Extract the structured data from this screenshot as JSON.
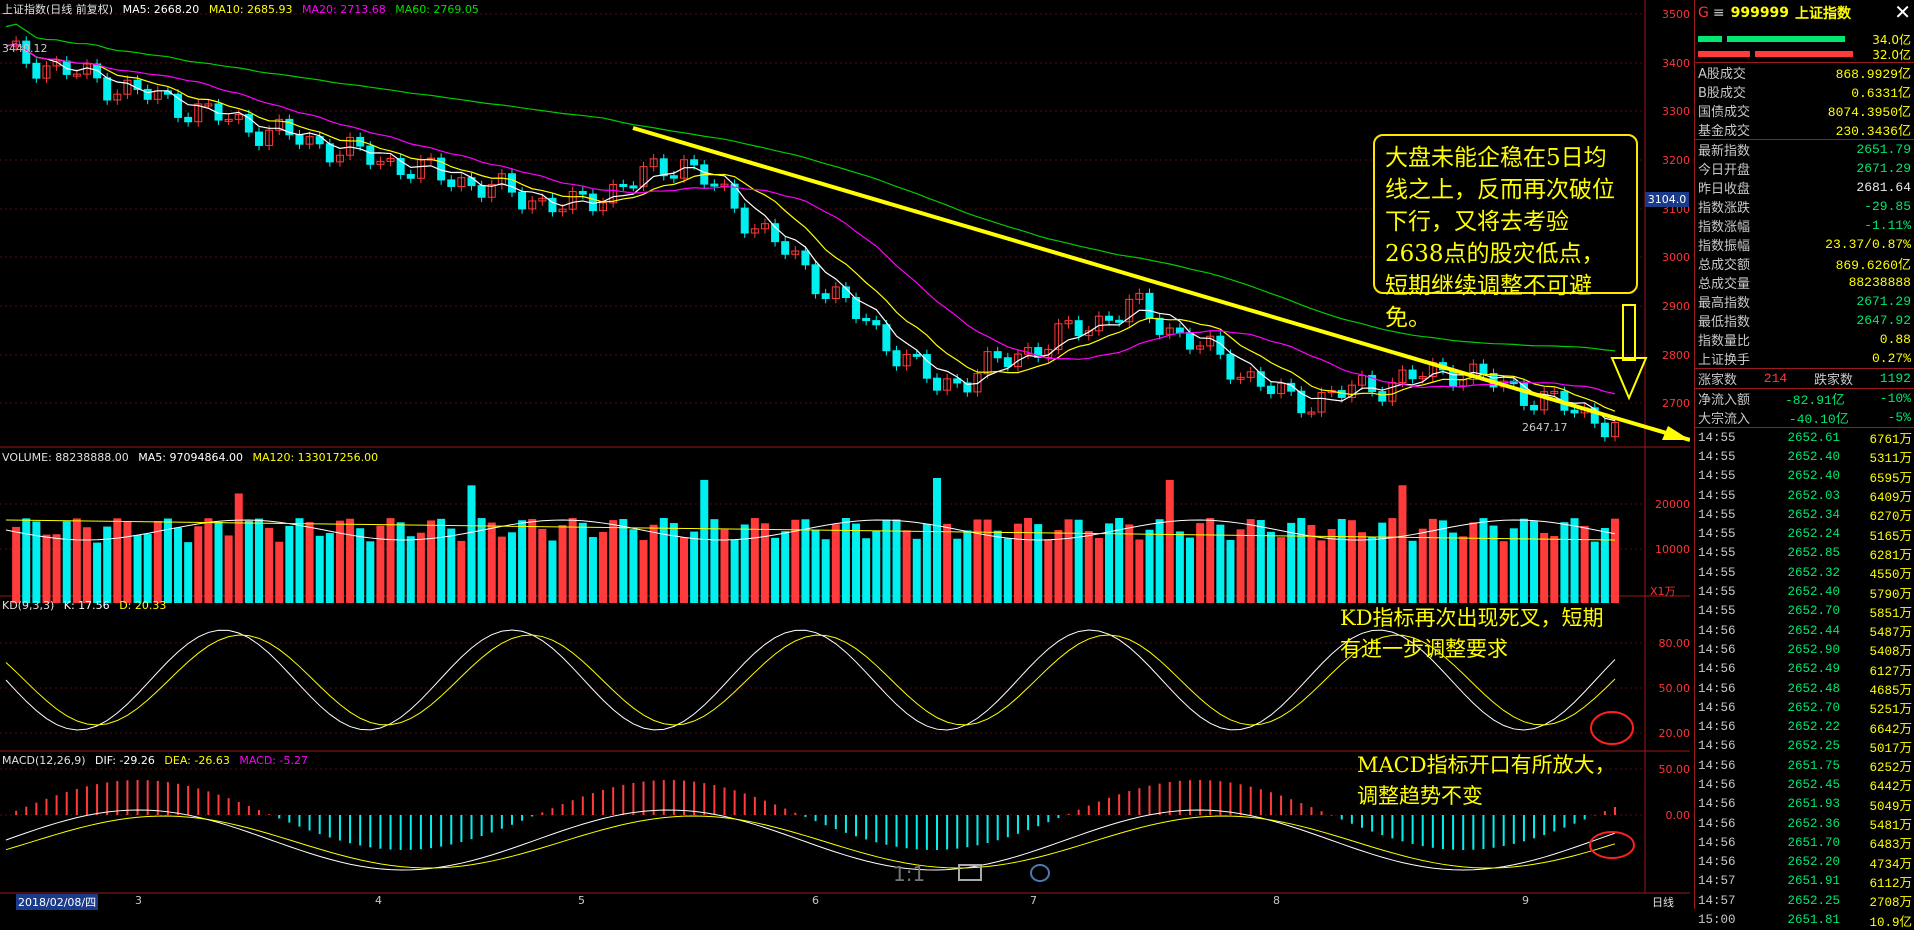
{
  "index_name": "上证指数(日线 前复权)",
  "ma": {
    "ma5": "MA5: 2668.20",
    "ma10": "MA10: 2685.93",
    "ma20": "MA20: 2713.68",
    "ma60": "MA60: 2769.05"
  },
  "high_marker": "3440.12",
  "low_marker": "2647.17",
  "price_axis": [
    "3500",
    "3400",
    "3300",
    "3200",
    "3100",
    "3000",
    "2900",
    "2800",
    "2700"
  ],
  "current_price_tag": "3104.0",
  "volume_header": {
    "vol": "VOLUME: 88238888.00",
    "ma5": "MA5: 97094864.00",
    "ma120": "MA120: 133017256.00"
  },
  "volume_axis": [
    "20000",
    "10000"
  ],
  "volume_unit": "X1万",
  "kd_header": {
    "name": "KD(9,3,3)",
    "k": "K: 17.56",
    "d": "D: 20.33"
  },
  "kd_axis": [
    "80.00",
    "50.00",
    "20.00"
  ],
  "macd_header": {
    "name": "MACD(12,26,9)",
    "dif": "DIF: -29.26",
    "dea": "DEA: -26.63",
    "macd": "MACD: -5.27"
  },
  "macd_axis": [
    "50.00",
    "0.00"
  ],
  "dates": {
    "start": "2018/02/08/四",
    "m3": "3",
    "m4": "4",
    "m5": "5",
    "m6": "6",
    "m7": "7",
    "m8": "8",
    "m9": "9"
  },
  "period_label": "日线",
  "zoom_label": "1:1",
  "annotations": {
    "main": "大盘未能企稳在5日均线之上，反而再次破位下行，又将去考验2638点的股灾低点，短期继续调整不可避免。",
    "kd_line1": "KD指标再次出现死叉，短期",
    "kd_line2": "有进一步调整要求",
    "macd_line1": "MACD指标开口有所放大，",
    "macd_line2": "调整趋势不变"
  },
  "right_panel": {
    "code": "999999",
    "name": "上证指数",
    "bar_values": [
      "34.0亿",
      "32.0亿"
    ],
    "rows1": [
      {
        "label": "A股成交",
        "value": "868.9929亿",
        "cls": ""
      },
      {
        "label": "B股成交",
        "value": "0.6331亿",
        "cls": ""
      },
      {
        "label": "国债成交",
        "value": "8074.3950亿",
        "cls": ""
      },
      {
        "label": "基金成交",
        "value": "230.3436亿",
        "cls": ""
      }
    ],
    "rows2": [
      {
        "label": "最新指数",
        "value": "2651.79",
        "cls": "down"
      },
      {
        "label": "今日开盘",
        "value": "2671.29",
        "cls": "down"
      },
      {
        "label": "昨日收盘",
        "value": "2681.64",
        "cls": "w"
      },
      {
        "label": "指数涨跌",
        "value": "-29.85",
        "cls": "down"
      },
      {
        "label": "指数涨幅",
        "value": "-1.11%",
        "cls": "down"
      },
      {
        "label": "指数振幅",
        "value": "23.37/0.87%",
        "cls": ""
      },
      {
        "label": "总成交额",
        "value": "869.6260亿",
        "cls": ""
      },
      {
        "label": "总成交量",
        "value": "88238888",
        "cls": ""
      },
      {
        "label": "最高指数",
        "value": "2671.29",
        "cls": "down"
      },
      {
        "label": "最低指数",
        "value": "2647.92",
        "cls": "down"
      },
      {
        "label": "指数量比",
        "value": "0.88",
        "cls": ""
      },
      {
        "label": "上证换手",
        "value": "0.27%",
        "cls": ""
      }
    ],
    "up_label": "涨家数",
    "up_count": "214",
    "down_label": "跌家数",
    "down_count": "1192",
    "net_inflow_label": "净流入额",
    "net_inflow": "-82.91亿",
    "net_inflow_pct": "-10%",
    "big_flow_label": "大宗流入",
    "big_flow": "-40.10亿",
    "big_flow_pct": "-5%",
    "ticks": [
      {
        "t": "14:55",
        "p": "2652.61",
        "v": "6761万"
      },
      {
        "t": "14:55",
        "p": "2652.40",
        "v": "5311万"
      },
      {
        "t": "14:55",
        "p": "2652.40",
        "v": "6595万"
      },
      {
        "t": "14:55",
        "p": "2652.03",
        "v": "6409万"
      },
      {
        "t": "14:55",
        "p": "2652.34",
        "v": "6270万"
      },
      {
        "t": "14:55",
        "p": "2652.24",
        "v": "5165万"
      },
      {
        "t": "14:55",
        "p": "2652.85",
        "v": "6281万"
      },
      {
        "t": "14:55",
        "p": "2652.32",
        "v": "4550万"
      },
      {
        "t": "14:55",
        "p": "2652.40",
        "v": "5790万"
      },
      {
        "t": "14:55",
        "p": "2652.70",
        "v": "5851万"
      },
      {
        "t": "14:56",
        "p": "2652.44",
        "v": "5487万"
      },
      {
        "t": "14:56",
        "p": "2652.90",
        "v": "5408万"
      },
      {
        "t": "14:56",
        "p": "2652.49",
        "v": "6127万"
      },
      {
        "t": "14:56",
        "p": "2652.48",
        "v": "4685万"
      },
      {
        "t": "14:56",
        "p": "2652.70",
        "v": "5251万"
      },
      {
        "t": "14:56",
        "p": "2652.22",
        "v": "6642万"
      },
      {
        "t": "14:56",
        "p": "2652.25",
        "v": "5017万"
      },
      {
        "t": "14:56",
        "p": "2651.75",
        "v": "6252万"
      },
      {
        "t": "14:56",
        "p": "2652.45",
        "v": "6442万"
      },
      {
        "t": "14:56",
        "p": "2651.93",
        "v": "5049万"
      },
      {
        "t": "14:56",
        "p": "2652.36",
        "v": "5481万"
      },
      {
        "t": "14:56",
        "p": "2651.70",
        "v": "6483万"
      },
      {
        "t": "14:56",
        "p": "2652.20",
        "v": "4734万"
      },
      {
        "t": "14:57",
        "p": "2651.91",
        "v": "6112万"
      },
      {
        "t": "14:57",
        "p": "2652.25",
        "v": "2708万"
      },
      {
        "t": "15:00",
        "p": "2651.81",
        "v": "10.9亿"
      }
    ]
  },
  "colors": {
    "up": "#ff3b3b",
    "down": "#00f0f0",
    "ma5": "#ffffff",
    "ma10": "#ffff00",
    "ma20": "#ff00ff",
    "ma60": "#00cc00",
    "annotation": "#ffff00"
  }
}
